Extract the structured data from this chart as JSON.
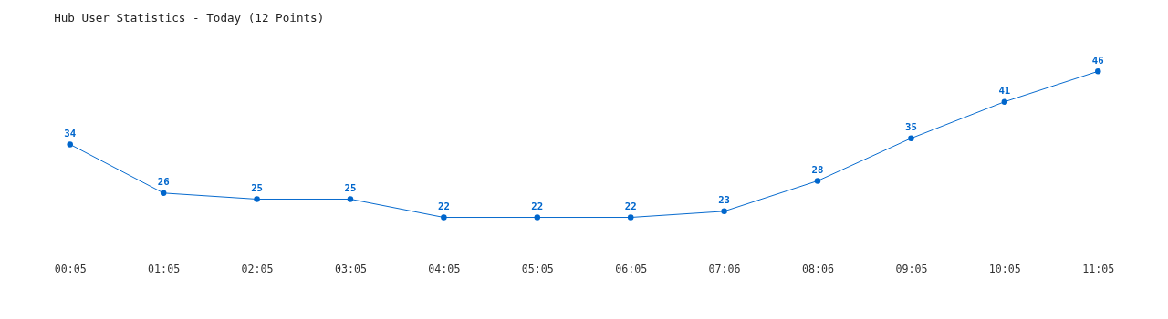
{
  "chart_data": {
    "type": "line",
    "title": "Hub User Statistics - Today (12 Points)",
    "categories": [
      "00:05",
      "01:05",
      "02:05",
      "03:05",
      "04:05",
      "05:05",
      "06:05",
      "07:06",
      "08:06",
      "09:05",
      "10:05",
      "11:05"
    ],
    "series": [
      {
        "color": "#0066cc",
        "values": [
          34,
          26,
          25,
          25,
          22,
          22,
          22,
          23,
          28,
          35,
          41,
          46
        ]
      }
    ],
    "data_labels": true,
    "marker": "circle",
    "line_style": "solid",
    "grid": false,
    "tick_labels": "x"
  }
}
